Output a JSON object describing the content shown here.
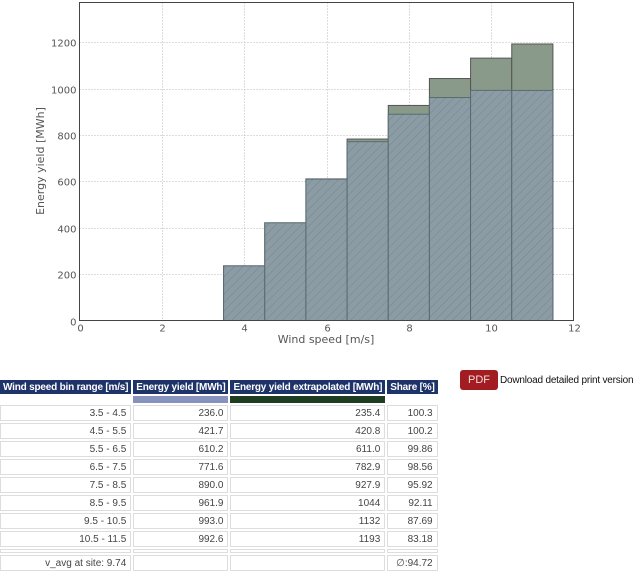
{
  "chart_data": {
    "type": "bar",
    "title": "",
    "xlabel": "Wind speed [m/s]",
    "ylabel": "Energy yield [MWh]",
    "xlim": [
      0,
      12
    ],
    "ylim": [
      0,
      1372
    ],
    "xticks": [
      0,
      2,
      4,
      6,
      8,
      10,
      12
    ],
    "yticks": [
      0,
      200,
      400,
      600,
      800,
      1000,
      1200
    ],
    "grid": true,
    "categories": [
      "3.5 - 4.5",
      "4.5 - 5.5",
      "5.5 - 6.5",
      "6.5 - 7.5",
      "7.5 - 8.5",
      "8.5 - 9.5",
      "9.5 - 10.5",
      "10.5 - 11.5"
    ],
    "bin_edges": [
      [
        3.5,
        4.5
      ],
      [
        4.5,
        5.5
      ],
      [
        5.5,
        6.5
      ],
      [
        6.5,
        7.5
      ],
      [
        7.5,
        8.5
      ],
      [
        8.5,
        9.5
      ],
      [
        9.5,
        10.5
      ],
      [
        10.5,
        11.5
      ]
    ],
    "series": [
      {
        "name": "Energy yield extrapolated [MWh]",
        "color": "#8a9a8a",
        "values": [
          235.4,
          420.8,
          611.0,
          782.9,
          927.9,
          1044,
          1132,
          1193
        ]
      },
      {
        "name": "Energy yield [MWh]",
        "color": "#8c9ca6",
        "hatch": "/",
        "values": [
          236.0,
          421.7,
          610.2,
          771.6,
          890.0,
          961.9,
          993.0,
          992.6
        ]
      }
    ]
  },
  "pdf": {
    "button_label": "PDF",
    "link_text": "Download detailed print version"
  },
  "table": {
    "headers": [
      "Wind speed bin range [m/s]",
      "Energy yield [MWh]",
      "Energy yield extrapolated [MWh]",
      "Share [%]"
    ],
    "swatch_colors": [
      "",
      "#8793bd",
      "#1f3d23",
      ""
    ],
    "rows": [
      [
        "3.5 - 4.5",
        "236.0",
        "235.4",
        "100.3"
      ],
      [
        "4.5 - 5.5",
        "421.7",
        "420.8",
        "100.2"
      ],
      [
        "5.5 - 6.5",
        "610.2",
        "611.0",
        "99.86"
      ],
      [
        "6.5 - 7.5",
        "771.6",
        "782.9",
        "98.56"
      ],
      [
        "7.5 - 8.5",
        "890.0",
        "927.9",
        "95.92"
      ],
      [
        "8.5 - 9.5",
        "961.9",
        "1044",
        "92.11"
      ],
      [
        "9.5 - 10.5",
        "993.0",
        "1132",
        "87.69"
      ],
      [
        "10.5 - 11.5",
        "992.6",
        "1193",
        "83.18"
      ]
    ],
    "footer": [
      "v_avg at site: 9.74",
      "",
      "",
      "∅:94.72"
    ]
  }
}
